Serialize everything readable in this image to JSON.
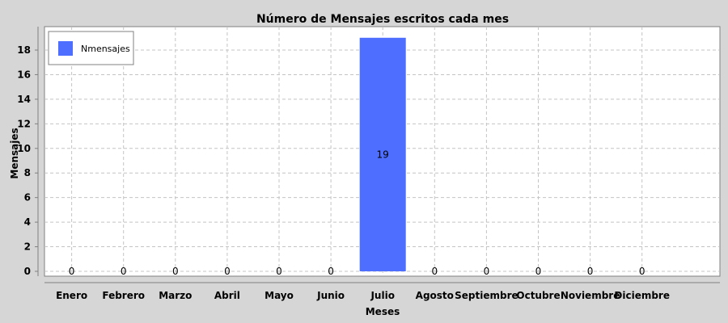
{
  "chart_data": {
    "type": "bar",
    "title": "Número de Mensajes escritos cada mes",
    "xlabel": "Meses",
    "ylabel": "Mensajes",
    "categories": [
      "Enero",
      "Febrero",
      "Marzo",
      "Abril",
      "Mayo",
      "Junio",
      "Julio",
      "Agosto",
      "Septiembre",
      "Octubre",
      "Noviembre",
      "Diciembre"
    ],
    "series": [
      {
        "name": "Nmensajes",
        "values": [
          0,
          0,
          0,
          0,
          0,
          0,
          19,
          0,
          0,
          0,
          0,
          0
        ],
        "color": "#4d6eff"
      }
    ],
    "ylim": [
      0,
      19.6
    ],
    "yticks": [
      0,
      2,
      4,
      6,
      8,
      10,
      12,
      14,
      16,
      18
    ],
    "grid": true,
    "legend_position": "top-left",
    "data_labels": true
  }
}
